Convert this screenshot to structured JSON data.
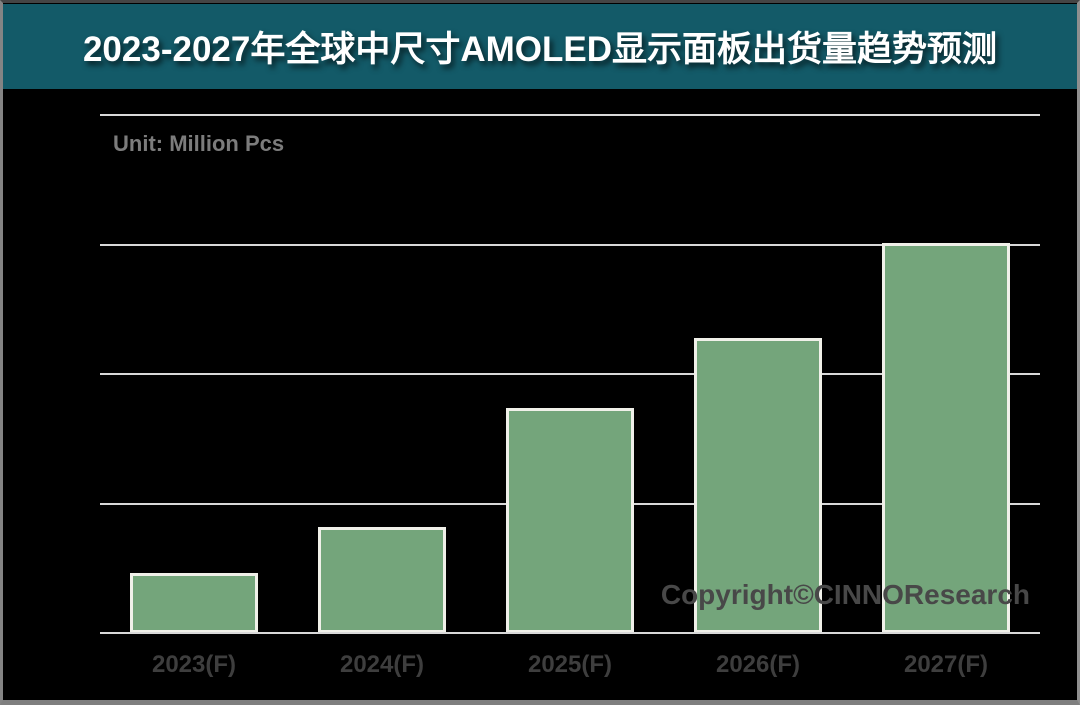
{
  "header": {
    "title": "2023-2027年全球中尺寸AMOLED显示面板出货量趋势预测"
  },
  "unit_label": "Unit: Million Pcs",
  "watermark": {
    "text": "Copyright©CINNOResearch"
  },
  "chart_data": {
    "type": "bar",
    "title": "2023-2027年全球中尺寸AMOLED显示面板出货量趋势预测",
    "subtitle": "",
    "unit_label": "Unit: Million Pcs",
    "categories": [
      "2023(F)",
      "2024(F)",
      "2025(F)",
      "2026(F)",
      "2027(F)"
    ],
    "values": [
      0.46,
      0.82,
      1.74,
      2.28,
      3.01
    ],
    "value_note": "y-axis has no tick labels; values estimated in gridline units (1 unit = one horizontal gridline interval, 4 intervals total)",
    "xlabel": "",
    "ylabel": "",
    "ylim": [
      0,
      4
    ],
    "grid": "horizontal gridlines on, unlabeled",
    "legend_position": "none",
    "annotations": [
      "Copyright©CINNOResearch"
    ]
  },
  "colors": {
    "background": "#000000",
    "title_bar_bg": "#135a68",
    "title_text": "#ffffff",
    "bar_fill": "#74a57b",
    "bar_border": "#f0f0e9",
    "gridline": "#d9d9d9",
    "axis_line": "#d9d9d9",
    "unit_text": "#7c7c7c",
    "category_label_text": "#3e3e3e",
    "watermark_text": "#484848",
    "frame_border": "#7f7f7f"
  }
}
